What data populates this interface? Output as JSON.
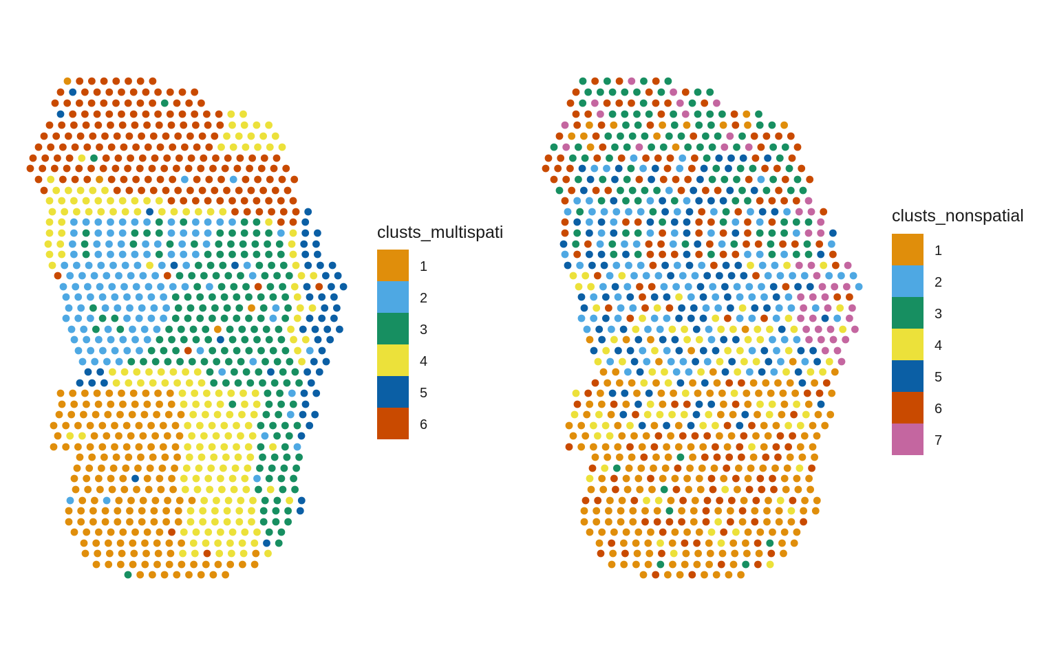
{
  "palette": {
    "1": "#E08E0B",
    "2": "#4EA8E3",
    "3": "#178F61",
    "4": "#ECE13A",
    "5": "#0B5FA5",
    "6": "#C94A00",
    "7": "#C466A0"
  },
  "chart_data": [
    {
      "type": "scatter",
      "title": "",
      "legend": {
        "title": "clusts_multispati",
        "entries": [
          "1",
          "2",
          "3",
          "4",
          "5",
          "6"
        ]
      },
      "grid": false,
      "description_regions": [
        {
          "rows": [
            0,
            10
          ],
          "dominant": "6"
        },
        {
          "rows": [
            9,
            16
          ],
          "dominant": "4"
        },
        {
          "rows": [
            14,
            27
          ],
          "dominant": "2"
        },
        {
          "rows": [
            17,
            31
          ],
          "dominant": "3"
        },
        {
          "rows": [
            27,
            45
          ],
          "dominant": "1"
        }
      ]
    },
    {
      "type": "scatter",
      "title": "",
      "legend": {
        "title": "clusts_nonspatial",
        "entries": [
          "1",
          "2",
          "3",
          "4",
          "5",
          "6",
          "7"
        ]
      },
      "grid": false,
      "description_regions": [
        {
          "rows": [
            0,
            12
          ],
          "dominant": "3"
        },
        {
          "rows": [
            8,
            18
          ],
          "dominant": "6"
        },
        {
          "rows": [
            14,
            30
          ],
          "dominant": "2"
        },
        {
          "rows": [
            14,
            34
          ],
          "dominant": "5"
        },
        {
          "rows": [
            30,
            45
          ],
          "dominant": "1"
        }
      ]
    }
  ]
}
